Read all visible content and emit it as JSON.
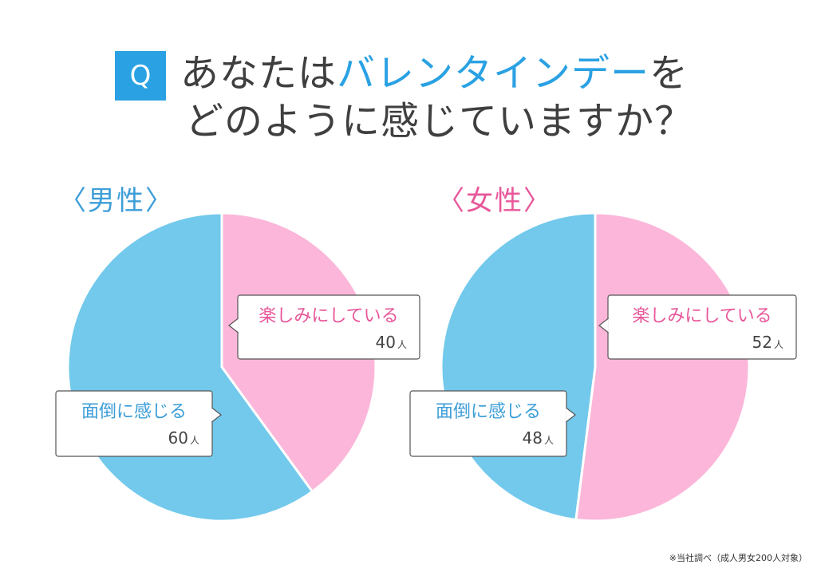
{
  "question": {
    "badge": "Q",
    "title_line1_prefix": "あなたは",
    "title_line1_highlight": "バレンタインデー",
    "title_line1_suffix": "を",
    "title_line2": "どのように感じていますか？"
  },
  "colors": {
    "blue": "#72c9ec",
    "pink": "#fbb6d9",
    "label_blue": "#3d9ed8",
    "label_pink": "#e8579a",
    "accent": "#2aa1e3"
  },
  "source_note": "※当社調べ（成人男女200人対象）",
  "chart_data": [
    {
      "type": "pie",
      "title": "〈男性〉",
      "unit": "人",
      "slices": [
        {
          "label": "楽しみにしている",
          "value": 40,
          "color": "#fbb6d9",
          "label_color": "#e8579a"
        },
        {
          "label": "面倒に感じる",
          "value": 60,
          "color": "#72c9ec",
          "label_color": "#3d9ed8"
        }
      ]
    },
    {
      "type": "pie",
      "title": "〈女性〉",
      "unit": "人",
      "slices": [
        {
          "label": "楽しみにしている",
          "value": 52,
          "color": "#fbb6d9",
          "label_color": "#e8579a"
        },
        {
          "label": "面倒に感じる",
          "value": 48,
          "color": "#72c9ec",
          "label_color": "#3d9ed8"
        }
      ]
    }
  ]
}
